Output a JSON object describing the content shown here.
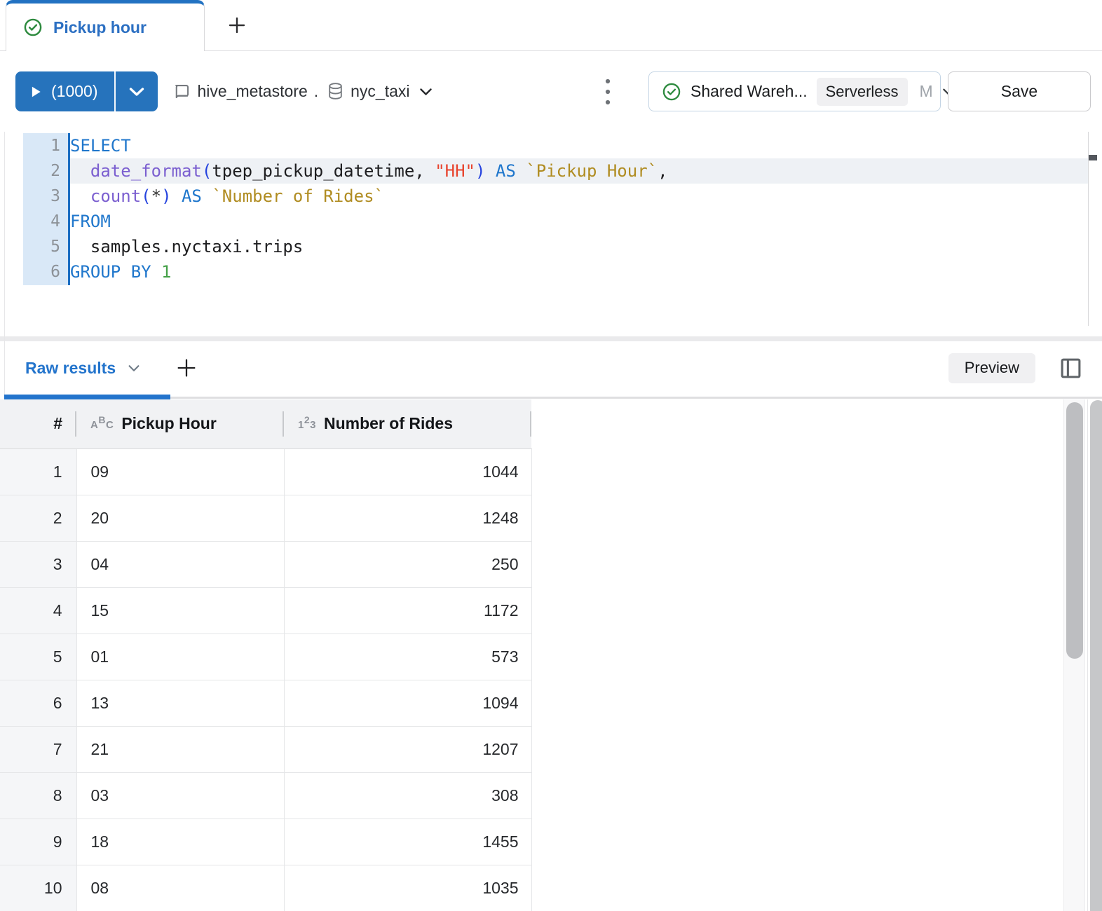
{
  "colors": {
    "accent_blue": "#2272C2",
    "run_button_blue": "#2673BC",
    "status_green": "#2D8A3E",
    "badge_bg": "#F0F0F2",
    "gutter_bg": "#D9E8F7",
    "gutter_line": "#1A6DC2",
    "active_line_bg": "#EEF1F5"
  },
  "tabbar": {
    "active_tab_label": "Pickup hour",
    "status_icon": "check-circle-icon",
    "new_tab_icon": "plus-icon"
  },
  "toolbar": {
    "run_button": {
      "icon": "play-icon",
      "label": "(1000)",
      "chevron_icon": "chevron-down-icon"
    },
    "catalog_selector": {
      "catalog_icon": "catalog-book-icon",
      "catalog": "hive_metastore",
      "dot": ".",
      "schema_icon": "database-icon",
      "schema": "nyc_taxi",
      "chevron_icon": "chevron-down-icon"
    },
    "kebab_icon": "kebab-menu-icon",
    "warehouse_selector": {
      "status_icon": "check-circle-icon",
      "name": "Shared Wareh...",
      "badge": "Serverless",
      "size": "M",
      "chevron_icon": "chevron-down-icon"
    },
    "save_label": "Save"
  },
  "editor": {
    "syntax_colors": {
      "kw": "#2077CC",
      "fn": "#7B5FD0",
      "str": "#E8432D",
      "br": "#2543DE",
      "alias": "#B08C21",
      "numlit": "#44A047",
      "pl": "#1D1D1F",
      "op": "#3A3A3A"
    },
    "lines": [
      {
        "number": 1,
        "active": false,
        "tokens": [
          [
            "kw",
            "SELECT"
          ]
        ]
      },
      {
        "number": 2,
        "active": true,
        "tokens": [
          [
            "pl",
            "  "
          ],
          [
            "fn",
            "date_format"
          ],
          [
            "br",
            "("
          ],
          [
            "pl",
            "tpep_pickup_datetime"
          ],
          [
            "pl",
            ", "
          ],
          [
            "str",
            "\"HH\""
          ],
          [
            "br",
            ")"
          ],
          [
            "pl",
            " "
          ],
          [
            "kw",
            "AS"
          ],
          [
            "pl",
            " "
          ],
          [
            "alias",
            "`Pickup Hour`"
          ],
          [
            "pl",
            ","
          ]
        ]
      },
      {
        "number": 3,
        "active": false,
        "tokens": [
          [
            "pl",
            "  "
          ],
          [
            "fn",
            "count"
          ],
          [
            "br",
            "("
          ],
          [
            "op",
            "*"
          ],
          [
            "br",
            ")"
          ],
          [
            "pl",
            " "
          ],
          [
            "kw",
            "AS"
          ],
          [
            "pl",
            " "
          ],
          [
            "alias",
            "`Number of Rides`"
          ]
        ]
      },
      {
        "number": 4,
        "active": false,
        "tokens": [
          [
            "kw",
            "FROM"
          ]
        ]
      },
      {
        "number": 5,
        "active": false,
        "tokens": [
          [
            "pl",
            "  samples.nyctaxi.trips"
          ]
        ]
      },
      {
        "number": 6,
        "active": false,
        "tokens": [
          [
            "kw",
            "GROUP BY"
          ],
          [
            "pl",
            " "
          ],
          [
            "numlit",
            "1"
          ]
        ]
      }
    ]
  },
  "results": {
    "tab_label": "Raw results",
    "tab_chevron_icon": "chevron-down-icon",
    "add_icon": "plus-icon",
    "preview_label": "Preview",
    "panel_icon": "panel-toggle-icon",
    "table": {
      "row_number_header": "#",
      "columns": [
        {
          "label": "Pickup Hour",
          "type": "string",
          "type_icon": "abc-type-icon",
          "align": "left"
        },
        {
          "label": "Number of Rides",
          "type": "number",
          "type_icon": "123-type-icon",
          "align": "right"
        }
      ],
      "rows": [
        {
          "n": 1,
          "pickup_hour": "09",
          "number_of_rides": 1044
        },
        {
          "n": 2,
          "pickup_hour": "20",
          "number_of_rides": 1248
        },
        {
          "n": 3,
          "pickup_hour": "04",
          "number_of_rides": 250
        },
        {
          "n": 4,
          "pickup_hour": "15",
          "number_of_rides": 1172
        },
        {
          "n": 5,
          "pickup_hour": "01",
          "number_of_rides": 573
        },
        {
          "n": 6,
          "pickup_hour": "13",
          "number_of_rides": 1094
        },
        {
          "n": 7,
          "pickup_hour": "21",
          "number_of_rides": 1207
        },
        {
          "n": 8,
          "pickup_hour": "03",
          "number_of_rides": 308
        },
        {
          "n": 9,
          "pickup_hour": "18",
          "number_of_rides": 1455
        },
        {
          "n": 10,
          "pickup_hour": "08",
          "number_of_rides": 1035
        }
      ]
    }
  }
}
